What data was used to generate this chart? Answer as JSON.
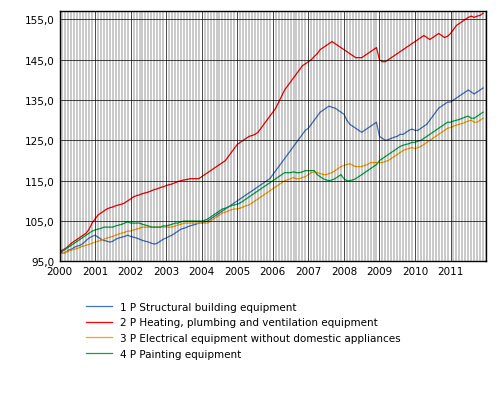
{
  "title": "",
  "ylim": [
    95.0,
    157.0
  ],
  "yticks": [
    95.0,
    105.0,
    115.0,
    125.0,
    135.0,
    145.0,
    155.0
  ],
  "ytick_labels": [
    "95,0",
    "105,0",
    "115,0",
    "125,0",
    "135,0",
    "145,0",
    "155,0"
  ],
  "background_color": "#ffffff",
  "grid_color": "#000000",
  "legend": [
    "1 P Structural building equipment",
    "2 P Heating, plumbing and ventilation equipment",
    "3 P Electrical equipment without domestic appliances",
    "4 P Painting equipment"
  ],
  "series_colors": [
    "#4472C4",
    "#FF0000",
    "#FFA500",
    "#00AA44"
  ],
  "blue_monthly": [
    97.5,
    97.0,
    97.2,
    97.8,
    98.0,
    98.5,
    98.8,
    99.0,
    99.5,
    100.2,
    100.8,
    101.2,
    101.5,
    101.0,
    100.5,
    100.2,
    100.0,
    99.8,
    100.0,
    100.5,
    100.8,
    101.0,
    101.2,
    101.5,
    101.2,
    101.0,
    100.8,
    100.5,
    100.2,
    100.0,
    99.8,
    99.5,
    99.3,
    99.5,
    100.0,
    100.5,
    100.8,
    101.2,
    101.5,
    102.0,
    102.5,
    103.0,
    103.2,
    103.5,
    103.8,
    104.0,
    104.2,
    104.5,
    104.5,
    104.8,
    105.0,
    105.5,
    106.0,
    106.5,
    107.0,
    107.5,
    108.0,
    108.5,
    109.0,
    109.5,
    110.0,
    110.5,
    111.0,
    111.5,
    112.0,
    112.5,
    113.0,
    113.5,
    114.0,
    114.5,
    115.0,
    115.5,
    116.5,
    117.5,
    118.5,
    119.5,
    120.5,
    121.5,
    122.5,
    123.5,
    124.5,
    125.5,
    126.5,
    127.5,
    128.0,
    129.0,
    130.0,
    131.0,
    132.0,
    132.5,
    133.0,
    133.5,
    133.2,
    133.0,
    132.5,
    132.0,
    131.5,
    130.0,
    129.0,
    128.5,
    128.0,
    127.5,
    127.0,
    127.5,
    128.0,
    128.5,
    129.0,
    129.5,
    126.0,
    125.5,
    125.0,
    125.2,
    125.5,
    125.8,
    126.0,
    126.5,
    126.5,
    127.0,
    127.5,
    127.8,
    127.5,
    127.5,
    128.0,
    128.5,
    129.0,
    130.0,
    131.0,
    132.0,
    133.0,
    133.5,
    134.0,
    134.5,
    134.5,
    135.0,
    135.5,
    136.0,
    136.5,
    137.0,
    137.5,
    137.0,
    136.5,
    137.0,
    137.5,
    138.0
  ],
  "red_monthly": [
    97.5,
    97.8,
    98.2,
    98.8,
    99.5,
    100.0,
    100.5,
    101.0,
    101.5,
    102.0,
    103.0,
    104.5,
    105.5,
    106.5,
    107.0,
    107.5,
    108.0,
    108.3,
    108.5,
    108.8,
    109.0,
    109.2,
    109.5,
    110.0,
    110.5,
    111.0,
    111.3,
    111.5,
    111.8,
    112.0,
    112.2,
    112.5,
    112.8,
    113.0,
    113.3,
    113.5,
    113.8,
    114.0,
    114.2,
    114.5,
    114.8,
    115.0,
    115.2,
    115.3,
    115.5,
    115.5,
    115.5,
    115.5,
    116.0,
    116.5,
    117.0,
    117.5,
    118.0,
    118.5,
    119.0,
    119.5,
    120.0,
    121.0,
    122.0,
    123.0,
    124.0,
    124.5,
    125.0,
    125.5,
    126.0,
    126.2,
    126.5,
    127.0,
    128.0,
    129.0,
    130.0,
    131.0,
    132.0,
    133.0,
    134.5,
    136.0,
    137.5,
    138.5,
    139.5,
    140.5,
    141.5,
    142.5,
    143.5,
    144.0,
    144.5,
    145.0,
    145.8,
    146.5,
    147.5,
    148.0,
    148.5,
    149.0,
    149.5,
    149.0,
    148.5,
    148.0,
    147.5,
    147.0,
    146.5,
    146.0,
    145.5,
    145.5,
    145.5,
    146.0,
    146.5,
    147.0,
    147.5,
    148.0,
    145.0,
    144.5,
    144.5,
    145.0,
    145.5,
    146.0,
    146.5,
    147.0,
    147.5,
    148.0,
    148.5,
    149.0,
    149.5,
    150.0,
    150.5,
    151.0,
    150.5,
    150.0,
    150.5,
    151.0,
    151.5,
    151.0,
    150.5,
    150.8,
    151.5,
    152.5,
    153.5,
    154.0,
    154.5,
    155.0,
    155.5,
    155.8,
    155.5,
    155.8,
    156.0,
    156.5
  ],
  "orange_monthly": [
    97.0,
    97.0,
    97.2,
    97.5,
    97.8,
    98.0,
    98.2,
    98.5,
    98.8,
    99.0,
    99.2,
    99.5,
    99.8,
    100.0,
    100.2,
    100.5,
    100.8,
    101.0,
    101.2,
    101.5,
    101.8,
    102.0,
    102.2,
    102.5,
    102.5,
    102.8,
    103.0,
    103.2,
    103.5,
    103.5,
    103.5,
    103.5,
    103.5,
    103.5,
    103.5,
    103.5,
    103.5,
    103.5,
    103.5,
    103.8,
    104.0,
    104.2,
    104.5,
    104.5,
    104.5,
    104.5,
    104.5,
    104.5,
    104.5,
    104.5,
    104.5,
    105.0,
    105.5,
    106.0,
    106.5,
    107.0,
    107.2,
    107.5,
    107.8,
    108.0,
    108.0,
    108.2,
    108.5,
    108.8,
    109.0,
    109.5,
    110.0,
    110.5,
    111.0,
    111.5,
    112.0,
    112.5,
    113.0,
    113.5,
    114.0,
    114.5,
    115.0,
    115.2,
    115.5,
    115.8,
    115.5,
    115.5,
    115.8,
    116.0,
    116.5,
    117.0,
    117.2,
    117.0,
    116.8,
    116.5,
    116.5,
    116.8,
    117.0,
    117.5,
    118.0,
    118.5,
    118.8,
    119.0,
    119.2,
    118.8,
    118.5,
    118.5,
    118.5,
    118.8,
    119.0,
    119.5,
    119.5,
    119.5,
    119.5,
    119.5,
    119.8,
    120.0,
    120.5,
    121.0,
    121.5,
    122.0,
    122.5,
    122.8,
    123.0,
    123.2,
    123.0,
    123.2,
    123.5,
    124.0,
    124.5,
    125.0,
    125.5,
    126.0,
    126.5,
    127.0,
    127.5,
    128.0,
    128.2,
    128.5,
    128.8,
    129.0,
    129.2,
    129.5,
    129.8,
    130.0,
    129.5,
    129.5,
    130.0,
    130.5
  ],
  "green_monthly": [
    97.2,
    97.5,
    98.0,
    98.5,
    99.0,
    99.5,
    100.0,
    100.5,
    101.0,
    101.5,
    102.0,
    102.5,
    102.8,
    103.0,
    103.2,
    103.5,
    103.5,
    103.5,
    103.5,
    103.8,
    104.0,
    104.2,
    104.5,
    104.8,
    104.5,
    104.5,
    104.5,
    104.5,
    104.2,
    104.0,
    103.8,
    103.5,
    103.5,
    103.5,
    103.5,
    103.8,
    103.8,
    104.0,
    104.2,
    104.5,
    104.5,
    104.8,
    105.0,
    105.0,
    105.0,
    105.0,
    105.0,
    105.0,
    105.0,
    105.2,
    105.5,
    106.0,
    106.5,
    107.0,
    107.5,
    108.0,
    108.2,
    108.5,
    108.8,
    109.0,
    109.2,
    109.5,
    110.0,
    110.5,
    111.0,
    111.5,
    112.0,
    112.5,
    113.0,
    113.5,
    114.0,
    114.5,
    115.0,
    115.5,
    116.0,
    116.5,
    117.0,
    117.0,
    117.0,
    117.2,
    117.0,
    117.0,
    117.2,
    117.5,
    117.5,
    117.5,
    117.5,
    116.5,
    116.0,
    115.5,
    115.2,
    115.0,
    115.2,
    115.5,
    116.0,
    116.5,
    115.5,
    115.0,
    115.0,
    115.2,
    115.5,
    116.0,
    116.5,
    117.0,
    117.5,
    118.0,
    118.5,
    119.0,
    120.0,
    120.5,
    121.0,
    121.5,
    122.0,
    122.5,
    123.0,
    123.5,
    123.8,
    124.0,
    124.2,
    124.5,
    124.5,
    124.8,
    125.0,
    125.5,
    126.0,
    126.5,
    127.0,
    127.5,
    128.0,
    128.5,
    129.0,
    129.5,
    129.5,
    129.8,
    130.0,
    130.2,
    130.5,
    130.8,
    131.0,
    130.5,
    130.5,
    131.0,
    131.5,
    132.0
  ]
}
